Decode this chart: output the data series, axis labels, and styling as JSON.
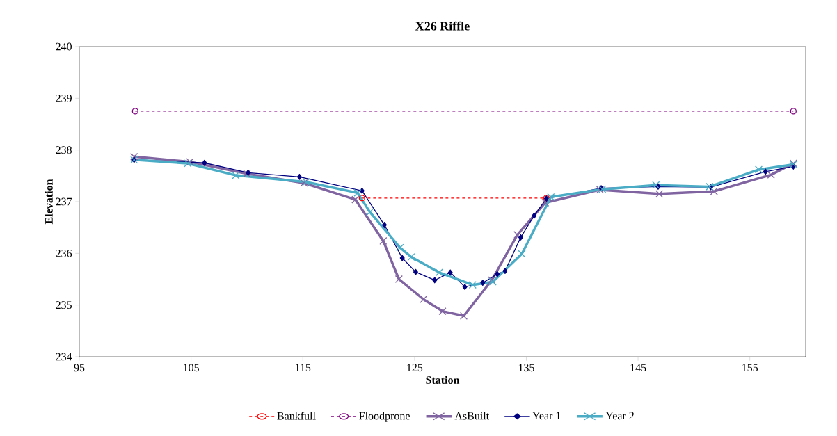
{
  "chart_data": {
    "type": "line",
    "title": "X26 Riffle",
    "xlabel": "Station",
    "ylabel": "Elevation",
    "xlim": [
      95,
      160
    ],
    "xticks": [
      95,
      105,
      115,
      125,
      135,
      145,
      155
    ],
    "ylim": [
      234,
      240
    ],
    "yticks": [
      234,
      235,
      236,
      237,
      238,
      239,
      240
    ],
    "grid": false,
    "legend": "bottom",
    "series": [
      {
        "name": "Bankfull",
        "color": "#ff0000",
        "marker": "circle",
        "line_style": "dashed",
        "x": [
          120.3,
          136.8
        ],
        "values": [
          237.07,
          237.07
        ]
      },
      {
        "name": "Floodprone",
        "color": "#800080",
        "marker": "circle",
        "line_style": "dashed",
        "x": [
          100,
          158.9
        ],
        "values": [
          238.75,
          238.75
        ]
      },
      {
        "name": "AsBuilt",
        "color": "#8064a2",
        "marker": "cross",
        "line_style": "solid",
        "x": [
          99.9,
          104.9,
          110.0,
          115.1,
          119.7,
          122.2,
          123.6,
          125.8,
          127.5,
          129.4,
          131.9,
          134.2,
          136.7,
          141.6,
          146.9,
          151.8,
          156.9,
          158.9
        ],
        "values": [
          237.87,
          237.77,
          237.54,
          237.36,
          237.04,
          236.24,
          235.5,
          235.11,
          234.88,
          234.79,
          235.48,
          236.36,
          236.98,
          237.23,
          237.15,
          237.2,
          237.52,
          237.74
        ]
      },
      {
        "name": "Year 1",
        "color": "#000080",
        "marker": "diamond",
        "line_style": "solid",
        "x": [
          99.9,
          106.2,
          110.1,
          114.7,
          120.3,
          122.3,
          123.9,
          125.1,
          126.8,
          128.2,
          129.5,
          131.1,
          132.4,
          133.1,
          134.5,
          135.7,
          136.8,
          141.7,
          146.8,
          151.5,
          156.4,
          158.9
        ],
        "values": [
          237.81,
          237.75,
          237.56,
          237.48,
          237.21,
          236.55,
          235.91,
          235.64,
          235.48,
          235.63,
          235.35,
          235.43,
          235.6,
          235.66,
          236.31,
          236.73,
          237.06,
          237.26,
          237.29,
          237.28,
          237.58,
          237.68
        ]
      },
      {
        "name": "Year 2",
        "color": "#4bacc6",
        "marker": "cross",
        "line_style": "solid",
        "x": [
          99.9,
          104.7,
          109.0,
          115.3,
          119.9,
          121.0,
          123.7,
          124.7,
          127.2,
          130.2,
          132.0,
          134.6,
          137.2,
          141.8,
          146.6,
          151.4,
          155.8,
          158.9
        ],
        "values": [
          237.81,
          237.74,
          237.51,
          237.38,
          237.17,
          236.8,
          236.11,
          235.93,
          235.63,
          235.39,
          235.45,
          235.99,
          237.09,
          237.24,
          237.32,
          237.29,
          237.62,
          237.72
        ]
      }
    ]
  }
}
